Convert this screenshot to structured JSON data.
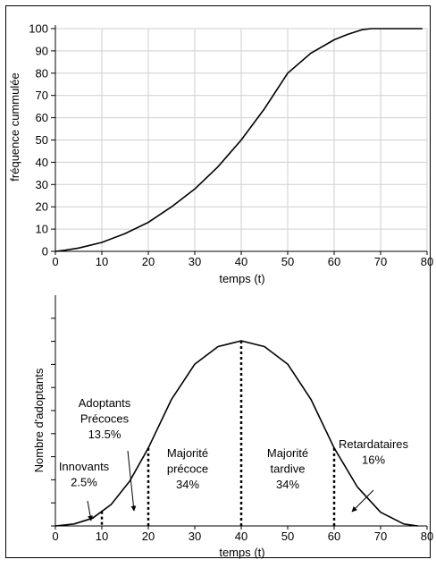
{
  "chart_data": [
    {
      "type": "line",
      "ylabel": "fréquence cummulée",
      "xlabel": "temps (t)",
      "xlim": [
        0,
        80
      ],
      "ylim": [
        0,
        100
      ],
      "x_ticks": [
        "0",
        "10",
        "20",
        "30",
        "40",
        "50",
        "60",
        "70",
        "80"
      ],
      "y_ticks": [
        "0",
        "10",
        "20",
        "30",
        "40",
        "50",
        "60",
        "70",
        "80",
        "90",
        "100"
      ],
      "grid": true,
      "series": [
        {
          "x": [
            0,
            2,
            5,
            10,
            15,
            20,
            25,
            30,
            35,
            40,
            45,
            50,
            55,
            60,
            63,
            66,
            68,
            70,
            75,
            79
          ],
          "y": [
            0,
            0.5,
            1.5,
            4,
            8,
            13,
            20,
            28,
            38,
            50,
            64,
            80,
            89,
            95,
            97.5,
            99.5,
            100,
            100,
            100,
            100
          ]
        }
      ]
    },
    {
      "type": "line",
      "ylabel": "Nombre d'adoptants",
      "xlabel": "temps (t)",
      "xlim": [
        0,
        80
      ],
      "ylim": [
        0,
        100
      ],
      "x_ticks": [
        "0",
        "10",
        "20",
        "30",
        "40",
        "50",
        "60",
        "70",
        "80"
      ],
      "grid": false,
      "series": [
        {
          "x": [
            0,
            4,
            8,
            12,
            16,
            20,
            25,
            30,
            35,
            40,
            45,
            50,
            55,
            60,
            65,
            70,
            75,
            78
          ],
          "y": [
            0,
            1,
            4,
            11,
            23,
            40,
            65,
            83,
            92,
            95,
            92,
            83,
            65,
            40,
            20,
            7,
            1,
            0
          ]
        }
      ],
      "dividers": [
        10,
        20,
        40,
        60
      ],
      "segments": [
        {
          "lines": [
            "Innovants",
            "2.5%"
          ]
        },
        {
          "lines": [
            "Adoptants",
            "Précoces",
            "13.5%"
          ]
        },
        {
          "lines": [
            "Majorité",
            "précoce",
            "34%"
          ]
        },
        {
          "lines": [
            "Majorité",
            "tardive",
            "34%"
          ]
        },
        {
          "lines": [
            "Retardataires",
            "16%"
          ]
        }
      ]
    }
  ]
}
